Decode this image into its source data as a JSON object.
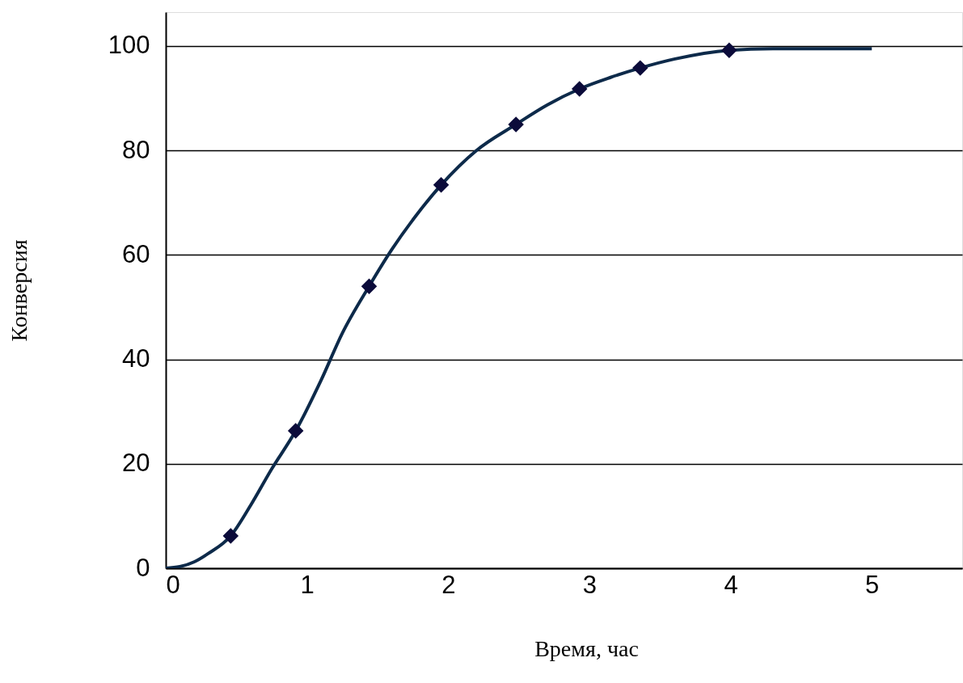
{
  "chart_data": {
    "type": "line",
    "xlabel": "Время, час",
    "ylabel": "Конверсия",
    "xlim": [
      0,
      5.64
    ],
    "ylim": [
      0,
      106.5
    ],
    "xticks": [
      0,
      1,
      2,
      3,
      4,
      5
    ],
    "yticks": [
      0,
      20,
      40,
      60,
      80,
      100
    ],
    "grid": "y",
    "line_style": "solid",
    "series": [
      {
        "marker": "none",
        "color": "#0d2a4a",
        "x": [
          0,
          0.1,
          0.2,
          0.3,
          0.46,
          0.6,
          0.75,
          0.92,
          1.1,
          1.25,
          1.44,
          1.6,
          1.8,
          1.95,
          2.2,
          2.48,
          2.7,
          2.93,
          3.15,
          3.36,
          3.6,
          3.99,
          4.3,
          4.6,
          5
        ],
        "values": [
          0,
          0.3,
          1.2,
          2.8,
          6.2,
          12,
          19,
          26.3,
          36,
          45,
          54,
          61,
          68.5,
          73.4,
          80,
          85,
          88.7,
          91.8,
          94,
          95.8,
          97.5,
          99.2,
          99.5,
          99.5,
          99.5
        ]
      },
      {
        "type": "scatter",
        "marker": "diamond",
        "color": "#0b0b3a",
        "x": [
          0.46,
          0.92,
          1.44,
          1.95,
          2.48,
          2.93,
          3.36,
          3.99
        ],
        "values": [
          6.2,
          26.3,
          54,
          73.4,
          85,
          91.8,
          95.8,
          99.2
        ]
      }
    ]
  }
}
